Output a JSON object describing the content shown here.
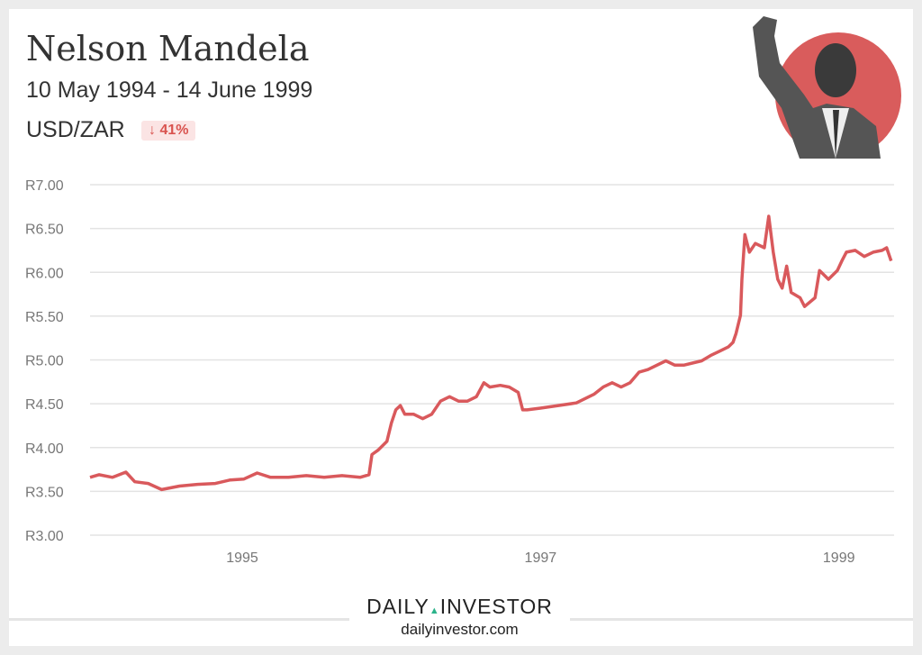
{
  "header": {
    "title": "Nelson Mandela",
    "period": "10 May 1994 - 14 June 1999",
    "pair": "USD/ZAR",
    "change": "41%",
    "change_icon": "arrow-down-icon"
  },
  "footer": {
    "brand_left": "DAILY",
    "brand_right": "INVESTOR",
    "url": "dailyinvestor.com"
  },
  "colors": {
    "line": "#d9595c",
    "photo_bg": "#d95c5c",
    "badge_bg": "#fbe4e4",
    "badge_text": "#d9534f",
    "grid": "#e3e3e3",
    "brand_accent": "#2bb38a"
  },
  "chart_data": {
    "type": "line",
    "title": "",
    "xlabel": "",
    "ylabel": "",
    "ylim": [
      3,
      7
    ],
    "xlim": [
      1993.98,
      1999.37
    ],
    "yticks": [
      3,
      3.5,
      4,
      4.5,
      5,
      5.5,
      6,
      6.5,
      7
    ],
    "ytick_labels": [
      "R3.00",
      "R3.50",
      "R4.00",
      "R4.50",
      "R5.00",
      "R5.50",
      "R6.00",
      "R6.50",
      "R7.00"
    ],
    "xticks": [
      1995,
      1997,
      1999
    ],
    "xtick_labels": [
      "1995",
      "1997",
      "1999"
    ],
    "grid": true,
    "series": [
      {
        "name": "USD/ZAR",
        "x": [
          1993.98,
          1994.04,
          1994.13,
          1994.22,
          1994.28,
          1994.37,
          1994.46,
          1994.58,
          1994.7,
          1994.82,
          1994.92,
          1995.01,
          1995.1,
          1995.19,
          1995.31,
          1995.43,
          1995.55,
          1995.67,
          1995.79,
          1995.85,
          1995.87,
          1995.91,
          1995.97,
          1996.0,
          1996.03,
          1996.06,
          1996.09,
          1996.15,
          1996.21,
          1996.27,
          1996.33,
          1996.39,
          1996.45,
          1996.51,
          1996.57,
          1996.62,
          1996.66,
          1996.73,
          1996.79,
          1996.85,
          1996.88,
          1996.91,
          1997.0,
          1997.12,
          1997.24,
          1997.36,
          1997.42,
          1997.48,
          1997.54,
          1997.6,
          1997.66,
          1997.72,
          1997.84,
          1997.9,
          1997.96,
          1998.08,
          1998.14,
          1998.2,
          1998.26,
          1998.29,
          1998.31,
          1998.34,
          1998.35,
          1998.37,
          1998.4,
          1998.44,
          1998.5,
          1998.53,
          1998.56,
          1998.59,
          1998.62,
          1998.65,
          1998.68,
          1998.74,
          1998.77,
          1998.84,
          1998.87,
          1998.93,
          1998.99,
          1999.02,
          1999.05,
          1999.11,
          1999.17,
          1999.23,
          1999.29,
          1999.32,
          1999.35
        ],
        "values": [
          3.66,
          3.69,
          3.66,
          3.72,
          3.61,
          3.59,
          3.52,
          3.56,
          3.58,
          3.59,
          3.63,
          3.64,
          3.71,
          3.66,
          3.66,
          3.68,
          3.66,
          3.68,
          3.66,
          3.69,
          3.92,
          3.97,
          4.07,
          4.28,
          4.43,
          4.48,
          4.38,
          4.38,
          4.33,
          4.38,
          4.53,
          4.58,
          4.53,
          4.53,
          4.58,
          4.74,
          4.69,
          4.71,
          4.69,
          4.63,
          4.43,
          4.43,
          4.45,
          4.48,
          4.51,
          4.61,
          4.69,
          4.74,
          4.69,
          4.74,
          4.86,
          4.89,
          4.99,
          4.94,
          4.94,
          4.99,
          5.05,
          5.1,
          5.15,
          5.2,
          5.3,
          5.51,
          5.92,
          6.43,
          6.23,
          6.33,
          6.28,
          6.64,
          6.23,
          5.92,
          5.82,
          6.07,
          5.77,
          5.71,
          5.61,
          5.71,
          6.02,
          5.92,
          6.02,
          6.13,
          6.23,
          6.25,
          6.18,
          6.23,
          6.25,
          6.28,
          6.13
        ]
      }
    ]
  }
}
